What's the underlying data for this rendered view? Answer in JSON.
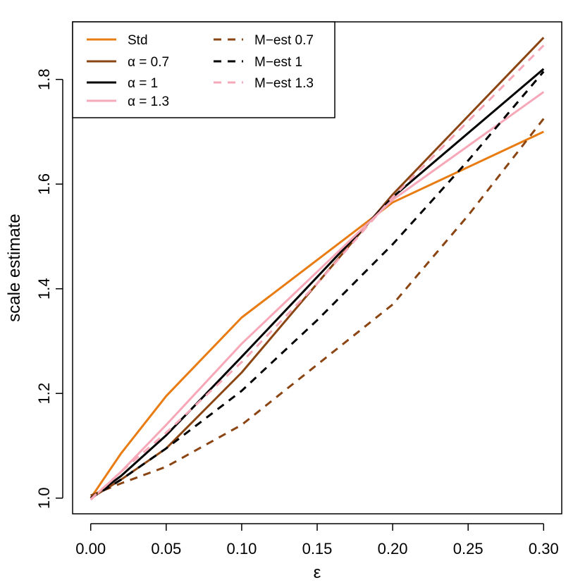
{
  "chart_data": {
    "type": "line",
    "title": "",
    "xlabel": "ε",
    "ylabel": "scale estimate",
    "xlim": [
      -0.012,
      0.312
    ],
    "ylim": [
      0.97,
      1.91
    ],
    "grid": false,
    "legend_position": "top-left",
    "x_ticks": [
      0.0,
      0.05,
      0.1,
      0.15,
      0.2,
      0.25,
      0.3
    ],
    "x_tick_labels": [
      "0.00",
      "0.05",
      "0.10",
      "0.15",
      "0.20",
      "0.25",
      "0.30"
    ],
    "y_ticks": [
      1.0,
      1.2,
      1.4,
      1.6,
      1.8
    ],
    "y_tick_labels": [
      "1.0",
      "1.2",
      "1.4",
      "1.6",
      "1.8"
    ],
    "series": [
      {
        "name": "Std",
        "color": "#E87C12",
        "dash": "solid",
        "x": [
          0.0,
          0.02,
          0.05,
          0.1,
          0.2,
          0.3
        ],
        "y": [
          1.0,
          1.085,
          1.195,
          1.345,
          1.565,
          1.7
        ]
      },
      {
        "name": "α = 0.7",
        "color": "#8B4513",
        "dash": "solid",
        "x": [
          0.0,
          0.02,
          0.05,
          0.1,
          0.2,
          0.3
        ],
        "y": [
          1.0,
          1.035,
          1.095,
          1.24,
          1.58,
          1.88
        ]
      },
      {
        "name": "α = 1",
        "color": "#000000",
        "dash": "solid",
        "x": [
          0.0,
          0.02,
          0.05,
          0.1,
          0.2,
          0.3
        ],
        "y": [
          1.0,
          1.042,
          1.12,
          1.27,
          1.575,
          1.82
        ]
      },
      {
        "name": "α = 1.3",
        "color": "#F7A8B8",
        "dash": "solid",
        "x": [
          0.0,
          0.02,
          0.05,
          0.1,
          0.2,
          0.3
        ],
        "y": [
          0.997,
          1.05,
          1.14,
          1.295,
          1.57,
          1.776
        ]
      },
      {
        "name": "M−est 0.7",
        "color": "#8B4513",
        "dash": "dashed",
        "x": [
          0.0,
          0.02,
          0.05,
          0.1,
          0.15,
          0.2,
          0.25,
          0.3
        ],
        "y": [
          1.005,
          1.028,
          1.06,
          1.14,
          1.255,
          1.37,
          1.54,
          1.725
        ]
      },
      {
        "name": "M−est 1",
        "color": "#000000",
        "dash": "dashed",
        "x": [
          0.0,
          0.02,
          0.05,
          0.1,
          0.15,
          0.2,
          0.25,
          0.3
        ],
        "y": [
          1.0,
          1.035,
          1.095,
          1.205,
          1.34,
          1.485,
          1.645,
          1.815
        ]
      },
      {
        "name": "M−est 1.3",
        "color": "#F7A8B8",
        "dash": "dashed",
        "x": [
          0.0,
          0.02,
          0.05,
          0.1,
          0.15,
          0.2,
          0.25,
          0.3
        ],
        "y": [
          0.998,
          1.05,
          1.125,
          1.26,
          1.41,
          1.575,
          1.72,
          1.865
        ]
      }
    ],
    "legend_columns": [
      [
        "Std",
        "α = 0.7",
        "α = 1",
        "α = 1.3"
      ],
      [
        "M−est 0.7",
        "M−est 1",
        "M−est 1.3"
      ]
    ]
  }
}
